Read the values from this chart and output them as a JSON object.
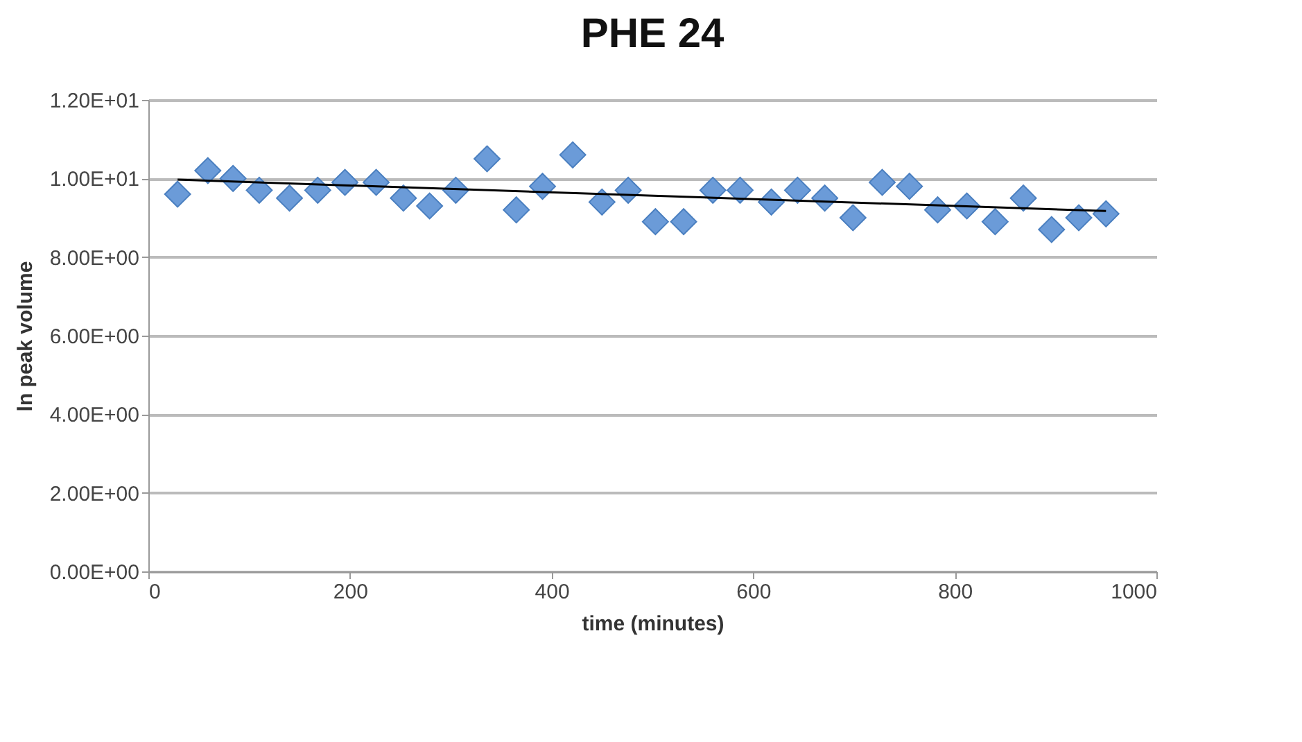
{
  "chart_data": {
    "type": "scatter",
    "title": "PHE 24",
    "xlabel": "time (minutes)",
    "ylabel": "ln peak volume",
    "xlim": [
      0,
      1000
    ],
    "xticks": [
      0,
      200,
      400,
      600,
      800,
      1000
    ],
    "ylim": [
      0,
      12
    ],
    "yticks": [
      {
        "value": 0,
        "label": "0.00E+00"
      },
      {
        "value": 2,
        "label": "2.00E+00"
      },
      {
        "value": 4,
        "label": "4.00E+00"
      },
      {
        "value": 6,
        "label": "6.00E+00"
      },
      {
        "value": 8,
        "label": "8.00E+00"
      },
      {
        "value": 10,
        "label": "1.00E+01"
      },
      {
        "value": 12,
        "label": "1.20E+01"
      }
    ],
    "grid": "y",
    "series": [
      {
        "marker": "diamond",
        "color": "#6b9bd8",
        "x": [
          29,
          59,
          84,
          110,
          140,
          168,
          195,
          226,
          253,
          279,
          305,
          336,
          365,
          391,
          421,
          450,
          476,
          503,
          531,
          560,
          587,
          618,
          644,
          671,
          699,
          728,
          755,
          783,
          812,
          840,
          868,
          896,
          923,
          950
        ],
        "values": [
          9.6,
          10.2,
          10.0,
          9.7,
          9.5,
          9.7,
          9.9,
          9.9,
          9.5,
          9.3,
          9.7,
          10.5,
          9.2,
          9.8,
          10.6,
          9.4,
          9.7,
          8.9,
          8.9,
          9.7,
          9.7,
          9.4,
          9.7,
          9.5,
          9.0,
          9.9,
          9.8,
          9.2,
          9.3,
          8.9,
          9.5,
          8.7,
          9.0,
          9.1
        ]
      },
      {
        "type": "line",
        "color": "#000000",
        "x": [
          29,
          950
        ],
        "values": [
          9.97,
          9.17
        ]
      }
    ]
  }
}
